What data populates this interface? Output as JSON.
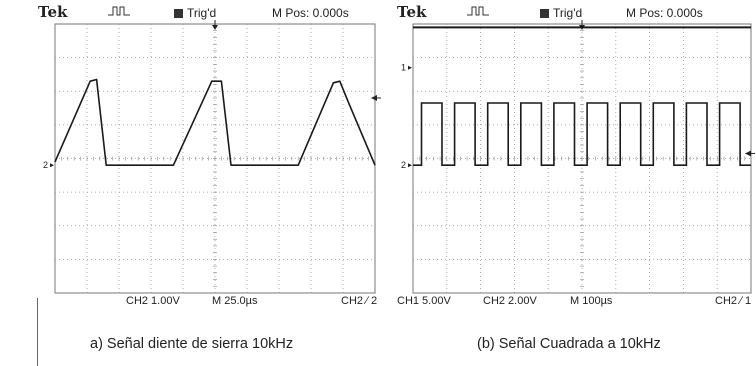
{
  "scopes": [
    {
      "brand": "Tek",
      "trigger_status": "Trig'd",
      "m_pos": "M Pos: 0.000s",
      "channel_left": "",
      "channel_mid": "CH2  1.00V",
      "timebase": "M 25.0µs",
      "trigger_source": "CH2 ∕ 2",
      "markers": [
        "2"
      ],
      "caption": "a) Señal diente de sierra 10kHz",
      "chart_data": {
        "type": "line",
        "title": "",
        "xlabel": "",
        "ylabel": "",
        "x_unit": "divisions",
        "xlim": [
          0,
          10
        ],
        "ylim": [
          -4,
          4
        ],
        "grid": true,
        "ch2_ground_div": -0.2,
        "series": [
          {
            "x": [
              0,
              1.1,
              1.3,
              1.6,
              2.5,
              3.7,
              4.9,
              5.2,
              5.5,
              6.3,
              7.6,
              8.7,
              8.9,
              9.2,
              10
            ],
            "y": [
              -0.1,
              2.3,
              2.35,
              -0.2,
              -0.2,
              -0.2,
              2.3,
              2.3,
              -0.2,
              -0.2,
              -0.2,
              2.25,
              2.3,
              1.6,
              -0.2
            ]
          }
        ]
      }
    },
    {
      "brand": "Tek",
      "trigger_status": "Trig'd",
      "m_pos": "M Pos: 0.000s",
      "channel_left": "CH1  5.00V",
      "channel_mid": "CH2  2.00V",
      "timebase": "M 100µs",
      "trigger_source": "CH2 ∕ 1",
      "markers": [
        "1",
        "2"
      ],
      "caption": "(b) Señal Cuadrada a 10kHz",
      "chart_data": {
        "type": "line",
        "title": "",
        "xlabel": "",
        "ylabel": "",
        "x_unit": "divisions",
        "xlim": [
          0,
          10
        ],
        "ylim": [
          -4,
          4
        ],
        "grid": true,
        "ch1_ground_div": 2.7,
        "ch2_ground_div": -0.2,
        "series": [
          {
            "x": [
              0,
              10
            ],
            "y": [
              3.9,
              3.9
            ]
          },
          {
            "period_div": 0.98,
            "first_rise_div": 0.25,
            "duty": 0.62,
            "low_div": -0.2,
            "high_div": 1.65
          }
        ]
      }
    }
  ]
}
